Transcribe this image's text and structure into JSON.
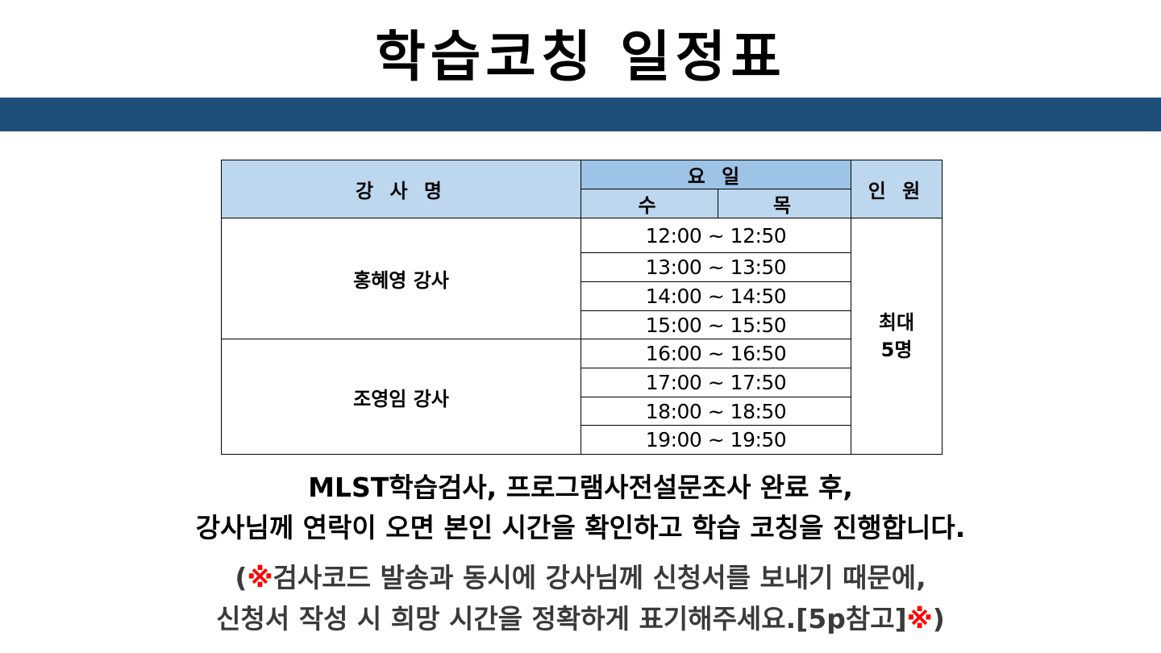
{
  "title": "학습코칭 일정표",
  "colors": {
    "banner": "#1f4e79",
    "header": "#bdd7ee",
    "header_day": "#9dc3e6",
    "note_mark": "#ff0000"
  },
  "table": {
    "headers": {
      "instructor": "강 사 명",
      "day": "요 일",
      "wed": "수",
      "thu": "목",
      "capacity": "인 원"
    },
    "instructors": [
      "홍혜영 강사",
      "조영임 강사"
    ],
    "times": [
      "12:00 ~ 12:50",
      "13:00 ~ 13:50",
      "14:00 ~ 14:50",
      "15:00 ~ 15:50",
      "16:00 ~ 16:50",
      "17:00 ~ 17:50",
      "18:00 ~ 18:50",
      "19:00 ~ 19:50"
    ],
    "capacity_line1": "최대",
    "capacity_line2": "5명"
  },
  "message": {
    "line1": "MLST학습검사, 프로그램사전설문조사 완료 후,",
    "line2": "강사님께 연락이 오면 본인 시간을 확인하고 학습 코칭을 진행합니다."
  },
  "note": {
    "open": "(",
    "mark": "※",
    "line1": "검사코드 발송과 동시에 강사님께 신청서를 보내기 때문에,",
    "line2": "신청서 작성 시 희망 시간을 정확하게 표기해주세요.[5p참고]",
    "close": ")"
  }
}
